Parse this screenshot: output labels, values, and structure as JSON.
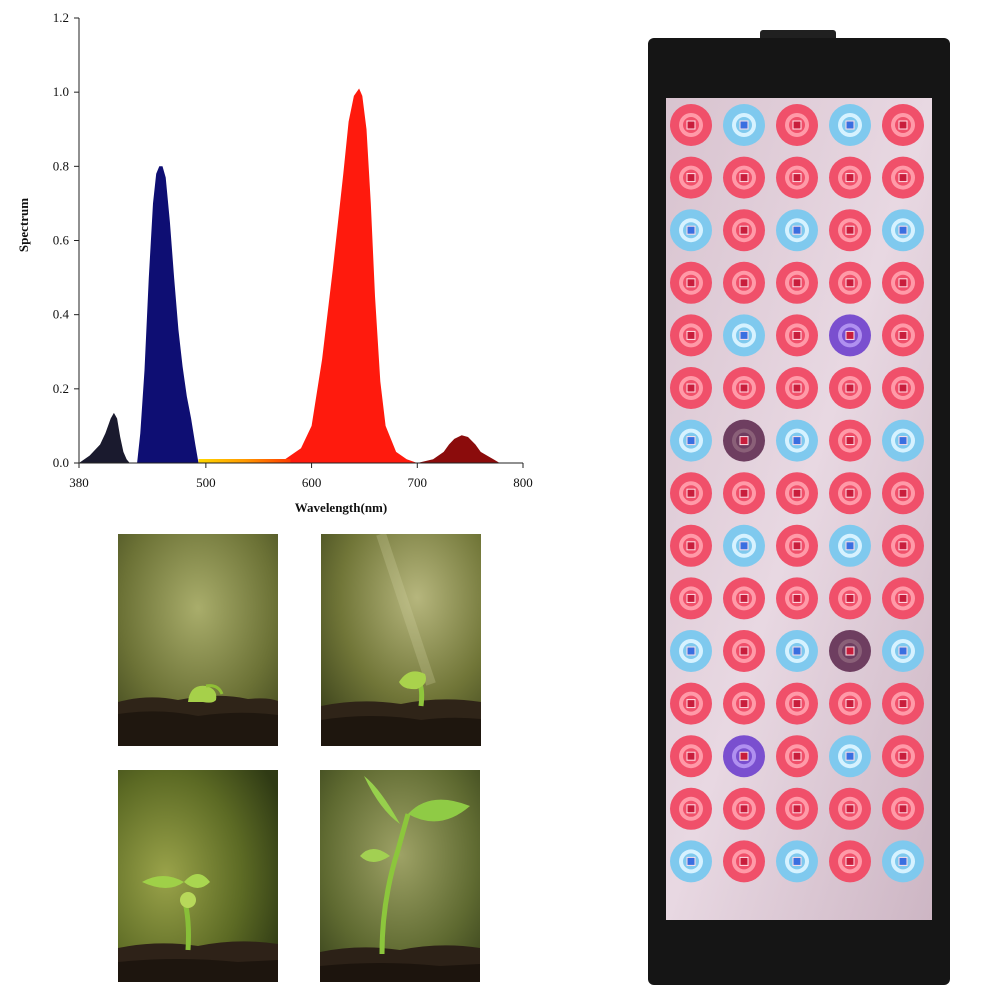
{
  "chart_data": {
    "type": "area",
    "title": "",
    "xlabel": "Wavelength(nm)",
    "ylabel": "Spectrum",
    "xlim": [
      380,
      800
    ],
    "ylim": [
      0,
      1.2
    ],
    "xticks": [
      380,
      500,
      600,
      700,
      800
    ],
    "xtick_labels": [
      "380",
      "500",
      "600",
      "700",
      "800"
    ],
    "yticks": [
      0.0,
      0.2,
      0.4,
      0.6,
      0.8,
      1.0,
      1.2
    ],
    "ytick_labels": [
      "0.0",
      "0.2",
      "0.4",
      "0.6",
      "0.8",
      "1.0",
      "1.2"
    ],
    "grid": false,
    "series": [
      {
        "color": "#1a1a2e",
        "x": [
          380,
          390,
          400,
          405,
          410,
          413,
          416,
          419,
          422,
          425,
          428
        ],
        "y": [
          0.0,
          0.02,
          0.05,
          0.08,
          0.12,
          0.135,
          0.12,
          0.07,
          0.03,
          0.01,
          0.0
        ]
      },
      {
        "color": "#0e0e73",
        "x": [
          435,
          438,
          442,
          446,
          450,
          453,
          456,
          459,
          462,
          466,
          470,
          474,
          478,
          482,
          486,
          490,
          493
        ],
        "y": [
          0.0,
          0.08,
          0.25,
          0.5,
          0.7,
          0.78,
          0.8,
          0.8,
          0.77,
          0.65,
          0.5,
          0.36,
          0.26,
          0.18,
          0.12,
          0.05,
          0.0
        ]
      },
      {
        "color": "#ff1a0d",
        "x": [
          560,
          575,
          590,
          600,
          610,
          620,
          630,
          635,
          640,
          645,
          648,
          652,
          656,
          660,
          665,
          670,
          680,
          690,
          700
        ],
        "y": [
          0.0,
          0.01,
          0.04,
          0.1,
          0.28,
          0.52,
          0.78,
          0.92,
          0.99,
          1.01,
          0.99,
          0.9,
          0.7,
          0.45,
          0.22,
          0.1,
          0.03,
          0.01,
          0.0
        ]
      },
      {
        "color": "#8b0c0c",
        "x": [
          700,
          715,
          725,
          730,
          735,
          742,
          748,
          755,
          760,
          766,
          772,
          778
        ],
        "y": [
          0.0,
          0.01,
          0.03,
          0.05,
          0.065,
          0.075,
          0.07,
          0.05,
          0.03,
          0.02,
          0.01,
          0.0
        ]
      }
    ]
  },
  "photos": [
    {
      "name": "seedling-stage-1"
    },
    {
      "name": "seedling-stage-2"
    },
    {
      "name": "seedling-stage-3"
    },
    {
      "name": "seedling-stage-4"
    }
  ],
  "panel": {
    "rows": 15,
    "cols": 5,
    "led_colors": {
      "R": "#f0506a",
      "B": "#7fc9ee",
      "P": "#7a4fcf",
      "D": "#6e3e60"
    },
    "layout": [
      "RBRBR",
      "RRRRR",
      "BRBRB",
      "RRRRR",
      "RBRPR",
      "RRRRR",
      "BDBRB",
      "RRRRR",
      "RBRBR",
      "RRRRR",
      "BRBDB",
      "RRRRR",
      "RPRBR",
      "RRRRR",
      "BRBRB"
    ]
  }
}
